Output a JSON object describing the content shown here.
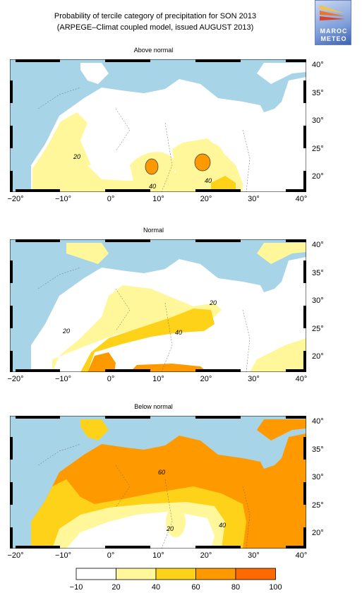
{
  "title_line1": "Probability of tercile category of precipitation for SON 2013",
  "title_line2": "(ARPEGE–Climat coupled model, issued AUGUST 2013)",
  "logo": {
    "line1": "MAROC",
    "line2": "METEO"
  },
  "colors": {
    "sea": "#a7d4e6",
    "land": "#ffffff",
    "c20_40": "#fff799",
    "c40_60": "#ffd21a",
    "c60_80": "#ff9900",
    "c80_100": "#ff6a00"
  },
  "x_ticks": [
    "−20°",
    "−10°",
    "0°",
    "10°",
    "20°",
    "30°",
    "40°"
  ],
  "y_ticks": [
    "40°",
    "35°",
    "30°",
    "25°",
    "20°"
  ],
  "panels": [
    {
      "title": "Above normal",
      "contour_labels": [
        "20",
        "40",
        "40"
      ]
    },
    {
      "title": "Normal",
      "contour_labels": [
        "20",
        "20",
        "40"
      ]
    },
    {
      "title": "Below normal",
      "contour_labels": [
        "60",
        "20",
        "40"
      ]
    }
  ],
  "colorbar": {
    "labels": [
      "−10",
      "20",
      "40",
      "60",
      "80",
      "100"
    ],
    "colors": [
      "#ffffff",
      "#fff799",
      "#ffd21a",
      "#ff9900",
      "#ff6a00"
    ]
  }
}
